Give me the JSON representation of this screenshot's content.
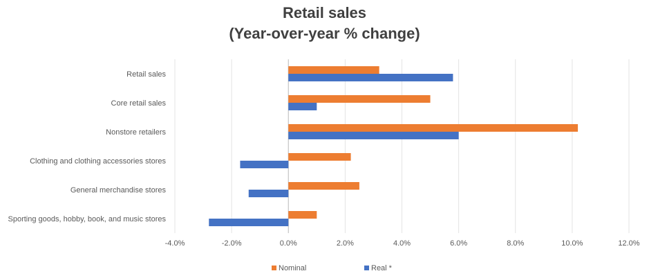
{
  "chart_data": {
    "type": "bar",
    "orientation": "horizontal",
    "title": "Retail sales",
    "subtitle": "(Year-over-year % change)",
    "categories": [
      "Retail sales",
      "Core retail sales",
      "Nonstore retailers",
      "Clothing and clothing accessories stores",
      "General merchandise stores",
      "Sporting goods, hobby, book, and music stores"
    ],
    "series": [
      {
        "name": "Nominal",
        "color": "#ED7D31",
        "values": [
          3.2,
          5.0,
          10.2,
          2.2,
          2.5,
          1.0
        ]
      },
      {
        "name": "Real *",
        "color": "#4472C4",
        "values": [
          5.8,
          1.0,
          6.0,
          -1.7,
          -1.4,
          -2.8
        ]
      }
    ],
    "xlim": [
      -4.0,
      12.0
    ],
    "x_ticks": [
      "-4.0%",
      "-2.0%",
      "0.0%",
      "2.0%",
      "4.0%",
      "6.0%",
      "8.0%",
      "10.0%",
      "12.0%"
    ],
    "x_tick_values": [
      -4,
      -2,
      0,
      2,
      4,
      6,
      8,
      10,
      12
    ],
    "grid": true,
    "legend_position": "bottom"
  }
}
